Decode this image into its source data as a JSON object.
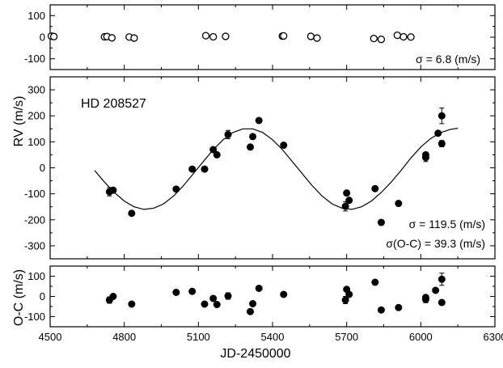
{
  "chart_data": {
    "type": "scatter",
    "xlabel": "JD-2450000",
    "x_ticks": [
      4500,
      4800,
      5100,
      5400,
      5700,
      6000,
      6300
    ],
    "xlim": [
      4500,
      6300
    ],
    "panels": [
      {
        "id": "companion-rv",
        "ylim": [
          -150,
          150
        ],
        "y_ticks": [
          -100,
          0,
          100
        ],
        "annotation": "σ = 6.8 (m/s)",
        "marker": "open",
        "points": [
          {
            "x": 4505,
            "y": 5,
            "e": 4
          },
          {
            "x": 4515,
            "y": 3,
            "e": 4
          },
          {
            "x": 4720,
            "y": 2,
            "e": 4
          },
          {
            "x": 4730,
            "y": 3,
            "e": 4
          },
          {
            "x": 4750,
            "y": -3,
            "e": 4
          },
          {
            "x": 4820,
            "y": 1,
            "e": 4
          },
          {
            "x": 4840,
            "y": -4,
            "e": 4
          },
          {
            "x": 5130,
            "y": 7,
            "e": 4
          },
          {
            "x": 5160,
            "y": 2,
            "e": 4
          },
          {
            "x": 5210,
            "y": 4,
            "e": 4
          },
          {
            "x": 5440,
            "y": 5,
            "e": 4
          },
          {
            "x": 5445,
            "y": 6,
            "e": 4
          },
          {
            "x": 5555,
            "y": 4,
            "e": 4
          },
          {
            "x": 5580,
            "y": -4,
            "e": 4
          },
          {
            "x": 5810,
            "y": -6,
            "e": 4
          },
          {
            "x": 5840,
            "y": -10,
            "e": 4
          },
          {
            "x": 5905,
            "y": 9,
            "e": 4
          },
          {
            "x": 5930,
            "y": 2,
            "e": 4
          },
          {
            "x": 5960,
            "y": 1,
            "e": 4
          }
        ]
      },
      {
        "id": "rv",
        "ylim": [
          -350,
          350
        ],
        "y_ticks": [
          -300,
          -200,
          -100,
          0,
          100,
          200,
          300
        ],
        "star_label": "HD 208527",
        "annotations": [
          "σ = 119.5 (m/s)",
          "σ(O-C) = 39.3 (m/s)"
        ],
        "marker": "filled",
        "points": [
          {
            "x": 4740,
            "y": -92,
            "e": 16
          },
          {
            "x": 4755,
            "y": -86,
            "e": 8
          },
          {
            "x": 4830,
            "y": -175,
            "e": 8
          },
          {
            "x": 5010,
            "y": -82,
            "e": 8
          },
          {
            "x": 5075,
            "y": -5,
            "e": 8
          },
          {
            "x": 5125,
            "y": -5,
            "e": 8
          },
          {
            "x": 5160,
            "y": 70,
            "e": 8
          },
          {
            "x": 5175,
            "y": 50,
            "e": 8
          },
          {
            "x": 5220,
            "y": 128,
            "e": 16
          },
          {
            "x": 5310,
            "y": 80,
            "e": 8
          },
          {
            "x": 5320,
            "y": 120,
            "e": 8
          },
          {
            "x": 5345,
            "y": 182,
            "e": 8
          },
          {
            "x": 5445,
            "y": 87,
            "e": 8
          },
          {
            "x": 5695,
            "y": -148,
            "e": 18
          },
          {
            "x": 5700,
            "y": -97,
            "e": 8
          },
          {
            "x": 5710,
            "y": -125,
            "e": 8
          },
          {
            "x": 5815,
            "y": -80,
            "e": 8
          },
          {
            "x": 5840,
            "y": -210,
            "e": 10
          },
          {
            "x": 5910,
            "y": -137,
            "e": 8
          },
          {
            "x": 6020,
            "y": 40,
            "e": 16
          },
          {
            "x": 6020,
            "y": 50,
            "e": 8
          },
          {
            "x": 6070,
            "y": 133,
            "e": 8
          },
          {
            "x": 6085,
            "y": 200,
            "e": 30
          },
          {
            "x": 6085,
            "y": 93,
            "e": 12
          }
        ],
        "model": {
          "x": [
            4680,
            4720,
            4760,
            4800,
            4840,
            4880,
            4920,
            4960,
            5000,
            5040,
            5080,
            5120,
            5160,
            5200,
            5240,
            5280,
            5320,
            5360,
            5400,
            5440,
            5480,
            5520,
            5560,
            5600,
            5640,
            5680,
            5720,
            5760,
            5800,
            5840,
            5880,
            5920,
            5960,
            6000,
            6040,
            6080,
            6120,
            6150
          ],
          "y": [
            -10,
            -55,
            -95,
            -128,
            -150,
            -160,
            -155,
            -138,
            -108,
            -68,
            -22,
            24,
            70,
            108,
            136,
            150,
            150,
            136,
            108,
            70,
            24,
            -22,
            -68,
            -108,
            -138,
            -155,
            -160,
            -150,
            -128,
            -95,
            -55,
            -10,
            38,
            80,
            113,
            135,
            148,
            152
          ]
        }
      },
      {
        "id": "o-c",
        "ylabel": "O-C (m/s)",
        "ylim": [
          -150,
          150
        ],
        "y_ticks": [
          -100,
          0,
          100
        ],
        "marker": "filled",
        "points": [
          {
            "x": 4740,
            "y": -18,
            "e": 16
          },
          {
            "x": 4755,
            "y": 0,
            "e": 8
          },
          {
            "x": 4830,
            "y": -38,
            "e": 8
          },
          {
            "x": 5010,
            "y": 20,
            "e": 8
          },
          {
            "x": 5075,
            "y": 25,
            "e": 8
          },
          {
            "x": 5125,
            "y": -38,
            "e": 8
          },
          {
            "x": 5160,
            "y": -10,
            "e": 8
          },
          {
            "x": 5175,
            "y": -40,
            "e": 8
          },
          {
            "x": 5220,
            "y": 2,
            "e": 16
          },
          {
            "x": 5310,
            "y": -75,
            "e": 8
          },
          {
            "x": 5320,
            "y": -36,
            "e": 8
          },
          {
            "x": 5345,
            "y": 40,
            "e": 8
          },
          {
            "x": 5445,
            "y": 10,
            "e": 8
          },
          {
            "x": 5695,
            "y": -18,
            "e": 18
          },
          {
            "x": 5700,
            "y": 35,
            "e": 8
          },
          {
            "x": 5710,
            "y": 10,
            "e": 8
          },
          {
            "x": 5815,
            "y": 70,
            "e": 8
          },
          {
            "x": 5840,
            "y": -67,
            "e": 10
          },
          {
            "x": 5910,
            "y": -55,
            "e": 8
          },
          {
            "x": 6020,
            "y": -15,
            "e": 16
          },
          {
            "x": 6020,
            "y": -5,
            "e": 8
          },
          {
            "x": 6060,
            "y": 30,
            "e": 8
          },
          {
            "x": 6085,
            "y": 85,
            "e": 30
          },
          {
            "x": 6085,
            "y": -30,
            "e": 12
          }
        ]
      }
    ],
    "shared_ylabel": "RV (m/s)"
  }
}
